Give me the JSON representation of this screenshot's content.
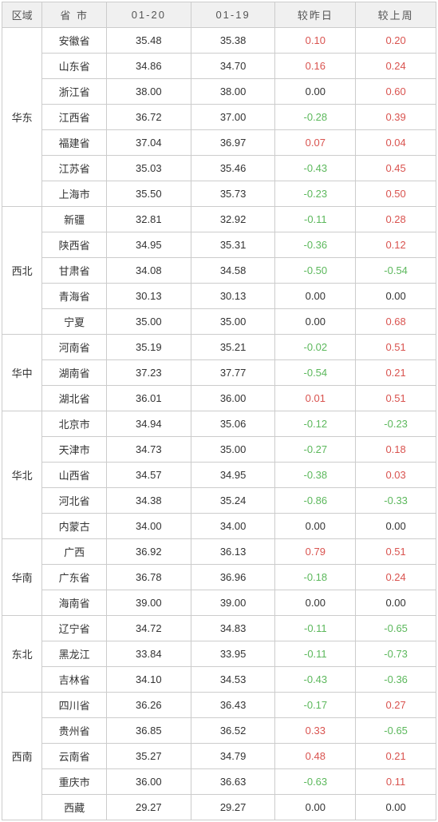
{
  "headers": {
    "region": "区域",
    "province": "省 市",
    "date1": "01-20",
    "date2": "01-19",
    "dayChange": "较昨日",
    "weekChange": "较上周"
  },
  "styling": {
    "header_bg": "#f0f0f0",
    "border_color": "#cccccc",
    "pos_color": "#d9534f",
    "neg_color": "#5cb85c",
    "zero_color": "#333333",
    "font_size": 13
  },
  "regions": [
    {
      "name": "华东",
      "rows": [
        {
          "province": "安徽省",
          "v1": "35.48",
          "v2": "35.38",
          "day": "0.10",
          "week": "0.20"
        },
        {
          "province": "山东省",
          "v1": "34.86",
          "v2": "34.70",
          "day": "0.16",
          "week": "0.24"
        },
        {
          "province": "浙江省",
          "v1": "38.00",
          "v2": "38.00",
          "day": "0.00",
          "week": "0.60"
        },
        {
          "province": "江西省",
          "v1": "36.72",
          "v2": "37.00",
          "day": "-0.28",
          "week": "0.39"
        },
        {
          "province": "福建省",
          "v1": "37.04",
          "v2": "36.97",
          "day": "0.07",
          "week": "0.04"
        },
        {
          "province": "江苏省",
          "v1": "35.03",
          "v2": "35.46",
          "day": "-0.43",
          "week": "0.45"
        },
        {
          "province": "上海市",
          "v1": "35.50",
          "v2": "35.73",
          "day": "-0.23",
          "week": "0.50"
        }
      ]
    },
    {
      "name": "西北",
      "rows": [
        {
          "province": "新疆",
          "v1": "32.81",
          "v2": "32.92",
          "day": "-0.11",
          "week": "0.28"
        },
        {
          "province": "陕西省",
          "v1": "34.95",
          "v2": "35.31",
          "day": "-0.36",
          "week": "0.12"
        },
        {
          "province": "甘肃省",
          "v1": "34.08",
          "v2": "34.58",
          "day": "-0.50",
          "week": "-0.54"
        },
        {
          "province": "青海省",
          "v1": "30.13",
          "v2": "30.13",
          "day": "0.00",
          "week": "0.00"
        },
        {
          "province": "宁夏",
          "v1": "35.00",
          "v2": "35.00",
          "day": "0.00",
          "week": "0.68"
        }
      ]
    },
    {
      "name": "华中",
      "rows": [
        {
          "province": "河南省",
          "v1": "35.19",
          "v2": "35.21",
          "day": "-0.02",
          "week": "0.51"
        },
        {
          "province": "湖南省",
          "v1": "37.23",
          "v2": "37.77",
          "day": "-0.54",
          "week": "0.21"
        },
        {
          "province": "湖北省",
          "v1": "36.01",
          "v2": "36.00",
          "day": "0.01",
          "week": "0.51"
        }
      ]
    },
    {
      "name": "华北",
      "rows": [
        {
          "province": "北京市",
          "v1": "34.94",
          "v2": "35.06",
          "day": "-0.12",
          "week": "-0.23"
        },
        {
          "province": "天津市",
          "v1": "34.73",
          "v2": "35.00",
          "day": "-0.27",
          "week": "0.18"
        },
        {
          "province": "山西省",
          "v1": "34.57",
          "v2": "34.95",
          "day": "-0.38",
          "week": "0.03"
        },
        {
          "province": "河北省",
          "v1": "34.38",
          "v2": "35.24",
          "day": "-0.86",
          "week": "-0.33"
        },
        {
          "province": "内蒙古",
          "v1": "34.00",
          "v2": "34.00",
          "day": "0.00",
          "week": "0.00"
        }
      ]
    },
    {
      "name": "华南",
      "rows": [
        {
          "province": "广西",
          "v1": "36.92",
          "v2": "36.13",
          "day": "0.79",
          "week": "0.51"
        },
        {
          "province": "广东省",
          "v1": "36.78",
          "v2": "36.96",
          "day": "-0.18",
          "week": "0.24"
        },
        {
          "province": "海南省",
          "v1": "39.00",
          "v2": "39.00",
          "day": "0.00",
          "week": "0.00"
        }
      ]
    },
    {
      "name": "东北",
      "rows": [
        {
          "province": "辽宁省",
          "v1": "34.72",
          "v2": "34.83",
          "day": "-0.11",
          "week": "-0.65"
        },
        {
          "province": "黑龙江",
          "v1": "33.84",
          "v2": "33.95",
          "day": "-0.11",
          "week": "-0.73"
        },
        {
          "province": "吉林省",
          "v1": "34.10",
          "v2": "34.53",
          "day": "-0.43",
          "week": "-0.36"
        }
      ]
    },
    {
      "name": "西南",
      "rows": [
        {
          "province": "四川省",
          "v1": "36.26",
          "v2": "36.43",
          "day": "-0.17",
          "week": "0.27"
        },
        {
          "province": "贵州省",
          "v1": "36.85",
          "v2": "36.52",
          "day": "0.33",
          "week": "-0.65"
        },
        {
          "province": "云南省",
          "v1": "35.27",
          "v2": "34.79",
          "day": "0.48",
          "week": "0.21"
        },
        {
          "province": "重庆市",
          "v1": "36.00",
          "v2": "36.63",
          "day": "-0.63",
          "week": "0.11"
        },
        {
          "province": "西藏",
          "v1": "29.27",
          "v2": "29.27",
          "day": "0.00",
          "week": "0.00"
        }
      ]
    }
  ]
}
